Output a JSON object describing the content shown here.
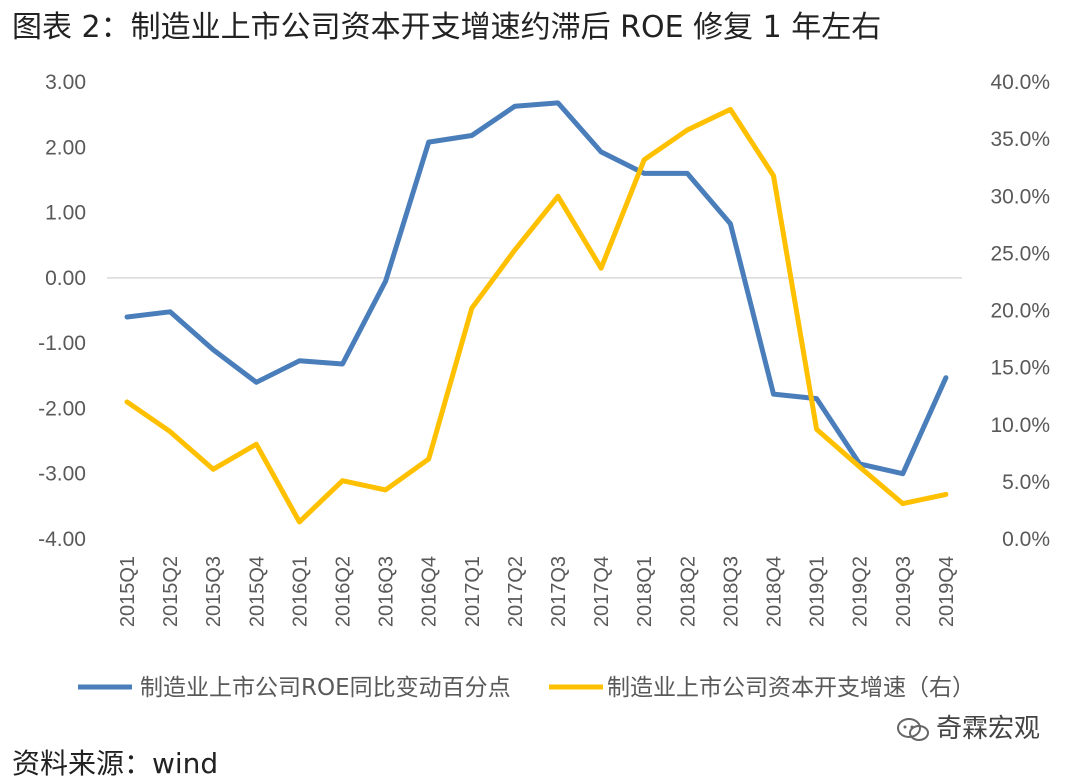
{
  "figure": {
    "title": "图表 2：制造业上市公司资本开支增速约滞后 ROE 修复 1 年左右",
    "source": "资料来源：wind",
    "watermark": "奇霖宏观"
  },
  "colors": {
    "roe": "#4A7EBB",
    "capex": "#FFC000",
    "grid": "#D9D9D9",
    "text": "#595959"
  },
  "chart_data": {
    "type": "line",
    "categories": [
      "2015Q1",
      "2015Q2",
      "2015Q3",
      "2015Q4",
      "2016Q1",
      "2016Q2",
      "2016Q3",
      "2016Q4",
      "2017Q1",
      "2017Q2",
      "2017Q3",
      "2017Q4",
      "2018Q1",
      "2018Q2",
      "2018Q3",
      "2018Q4",
      "2019Q1",
      "2019Q2",
      "2019Q3",
      "2019Q4"
    ],
    "y_left": {
      "ylim": [
        -4.0,
        3.0
      ],
      "ticks": [
        "3.00",
        "2.00",
        "1.00",
        "0.00",
        "-1.00",
        "-2.00",
        "-3.00",
        "-4.00"
      ],
      "tick_values": [
        3,
        2,
        1,
        0,
        -1,
        -2,
        -3,
        -4
      ]
    },
    "y_right": {
      "ylim": [
        0,
        40
      ],
      "ticks": [
        "40.0%",
        "35.0%",
        "30.0%",
        "25.0%",
        "20.0%",
        "15.0%",
        "10.0%",
        "5.0%",
        "0.0%"
      ],
      "tick_values": [
        40,
        35,
        30,
        25,
        20,
        15,
        10,
        5,
        0
      ]
    },
    "series": [
      {
        "name": "制造业上市公司ROE同比变动百分点",
        "axis": "left",
        "values": [
          -0.6,
          -0.52,
          -1.1,
          -1.6,
          -1.27,
          -1.32,
          -0.05,
          2.08,
          2.18,
          2.63,
          2.68,
          1.93,
          1.6,
          1.6,
          0.83,
          -1.78,
          -1.85,
          -2.85,
          -3.0,
          -1.53
        ]
      },
      {
        "name": "制造业上市公司资本开支增速（右）",
        "axis": "right",
        "values": [
          12.0,
          9.4,
          6.1,
          8.3,
          1.5,
          5.1,
          4.3,
          7.0,
          20.2,
          25.3,
          30.0,
          23.7,
          33.2,
          35.8,
          37.6,
          31.8,
          9.6,
          6.3,
          3.1,
          3.9
        ]
      }
    ],
    "legend": "bottom"
  }
}
